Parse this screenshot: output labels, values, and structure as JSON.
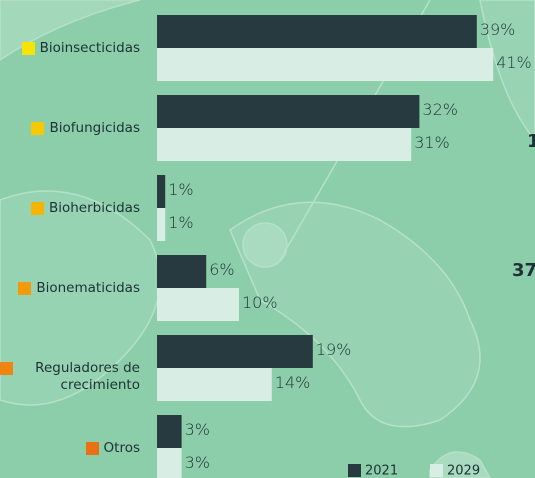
{
  "chart_data": {
    "type": "bar",
    "orientation": "horizontal",
    "categories": [
      "Bioinsecticidas",
      "Biofungicidas",
      "Bioherbicidas",
      "Bionematicidas",
      "Reguladores de crecimiento",
      "Otros"
    ],
    "marker_colors": [
      "#f7e400",
      "#f6c800",
      "#f5b400",
      "#f19a0c",
      "#ee8412",
      "#ea7014"
    ],
    "series": [
      {
        "name": "2021",
        "color": "#263a40",
        "values": [
          39,
          32,
          1,
          6,
          19,
          3
        ],
        "value_labels": [
          "39%",
          "32%",
          "1%",
          "6%",
          "19%",
          "3%"
        ]
      },
      {
        "name": "2029",
        "color": "#d8ede3",
        "values": [
          41,
          31,
          1,
          10,
          14,
          3
        ],
        "value_labels": [
          "41%",
          "31%",
          "1%",
          "10%",
          "14%",
          "3%"
        ]
      }
    ],
    "annotations": [
      "1",
      "37"
    ]
  }
}
